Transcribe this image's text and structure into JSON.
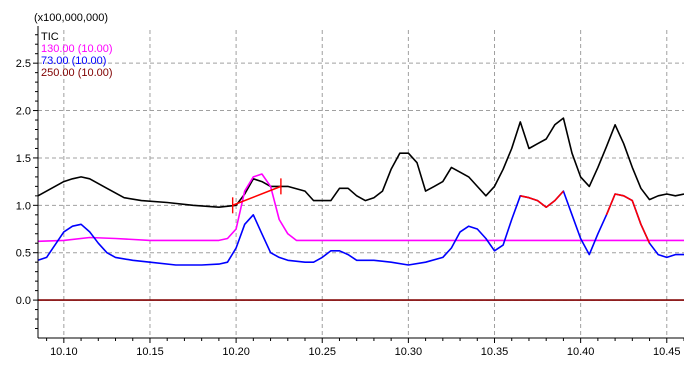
{
  "chart_data": {
    "type": "line",
    "scale_label": "(x100,000,000)",
    "xlim": [
      10.085,
      10.46
    ],
    "ylim": [
      -0.4,
      2.85
    ],
    "x_ticks": [
      10.1,
      10.15,
      10.2,
      10.25,
      10.3,
      10.35,
      10.4,
      10.45
    ],
    "x_tick_labels": [
      "10.10",
      "10.15",
      "10.20",
      "10.25",
      "10.30",
      "10.35",
      "10.40",
      "10.45"
    ],
    "y_ticks": [
      0.0,
      0.5,
      1.0,
      1.5,
      2.0,
      2.5
    ],
    "y_tick_labels": [
      "0.0",
      "0.5",
      "1.0",
      "1.5",
      "2.0",
      "2.5"
    ],
    "grid": true,
    "legend_placement": "top-left",
    "series": [
      {
        "name": "TIC",
        "color": "#000000",
        "x": [
          10.085,
          10.09,
          10.1,
          10.105,
          10.11,
          10.115,
          10.125,
          10.135,
          10.145,
          10.16,
          10.175,
          10.19,
          10.2,
          10.205,
          10.21,
          10.215,
          10.22,
          10.23,
          10.24,
          10.245,
          10.25,
          10.255,
          10.26,
          10.265,
          10.27,
          10.275,
          10.28,
          10.285,
          10.29,
          10.295,
          10.3,
          10.305,
          10.31,
          10.315,
          10.32,
          10.325,
          10.33,
          10.335,
          10.34,
          10.345,
          10.35,
          10.355,
          10.36,
          10.365,
          10.37,
          10.375,
          10.38,
          10.385,
          10.39,
          10.395,
          10.4,
          10.405,
          10.41,
          10.415,
          10.42,
          10.425,
          10.43,
          10.435,
          10.44,
          10.445,
          10.45,
          10.455,
          10.46
        ],
        "y": [
          1.1,
          1.15,
          1.25,
          1.28,
          1.3,
          1.28,
          1.18,
          1.08,
          1.05,
          1.03,
          1.0,
          0.98,
          1.0,
          1.12,
          1.28,
          1.25,
          1.2,
          1.2,
          1.15,
          1.05,
          1.05,
          1.05,
          1.18,
          1.18,
          1.1,
          1.05,
          1.08,
          1.15,
          1.38,
          1.55,
          1.55,
          1.45,
          1.15,
          1.2,
          1.25,
          1.4,
          1.35,
          1.3,
          1.2,
          1.1,
          1.2,
          1.38,
          1.6,
          1.88,
          1.6,
          1.65,
          1.7,
          1.85,
          1.92,
          1.55,
          1.3,
          1.2,
          1.4,
          1.62,
          1.85,
          1.65,
          1.4,
          1.18,
          1.06,
          1.1,
          1.12,
          1.1,
          1.12
        ]
      },
      {
        "name": "130.00 (10.00)",
        "color": "#ff00ff",
        "x": [
          10.085,
          10.1,
          10.115,
          10.13,
          10.15,
          10.17,
          10.19,
          10.195,
          10.2,
          10.205,
          10.21,
          10.215,
          10.22,
          10.225,
          10.23,
          10.235,
          10.25,
          10.3,
          10.35,
          10.4,
          10.46
        ],
        "y": [
          0.62,
          0.63,
          0.66,
          0.65,
          0.63,
          0.63,
          0.63,
          0.65,
          0.75,
          1.15,
          1.3,
          1.33,
          1.2,
          0.85,
          0.7,
          0.63,
          0.63,
          0.63,
          0.63,
          0.63,
          0.63
        ]
      },
      {
        "name": "73.00 (10.00)",
        "color": "#0000ff",
        "x": [
          10.085,
          10.09,
          10.1,
          10.105,
          10.11,
          10.115,
          10.12,
          10.125,
          10.13,
          10.14,
          10.15,
          10.165,
          10.18,
          10.19,
          10.195,
          10.2,
          10.205,
          10.21,
          10.215,
          10.22,
          10.225,
          10.23,
          10.24,
          10.245,
          10.25,
          10.255,
          10.26,
          10.265,
          10.27,
          10.28,
          10.29,
          10.3,
          10.31,
          10.32,
          10.325,
          10.33,
          10.335,
          10.34,
          10.345,
          10.35,
          10.355,
          10.36,
          10.365,
          10.37,
          10.375,
          10.38,
          10.385,
          10.39,
          10.395,
          10.4,
          10.405,
          10.41,
          10.415,
          10.42,
          10.425,
          10.43,
          10.435,
          10.44,
          10.445,
          10.45,
          10.455,
          10.46
        ],
        "y": [
          0.42,
          0.45,
          0.72,
          0.78,
          0.8,
          0.72,
          0.6,
          0.5,
          0.45,
          0.42,
          0.4,
          0.37,
          0.37,
          0.38,
          0.4,
          0.55,
          0.8,
          0.9,
          0.7,
          0.5,
          0.45,
          0.42,
          0.4,
          0.4,
          0.45,
          0.52,
          0.52,
          0.48,
          0.42,
          0.42,
          0.4,
          0.37,
          0.4,
          0.45,
          0.55,
          0.72,
          0.78,
          0.75,
          0.65,
          0.52,
          0.58,
          0.85,
          1.1,
          1.08,
          1.05,
          0.98,
          1.05,
          1.15,
          0.9,
          0.65,
          0.48,
          0.7,
          0.9,
          1.12,
          1.1,
          1.05,
          0.8,
          0.6,
          0.48,
          0.45,
          0.48,
          0.48
        ]
      },
      {
        "name": "250.00 (10.00)",
        "color": "#800000",
        "x": [
          10.085,
          10.46
        ],
        "y": [
          0.0,
          0.0
        ]
      }
    ],
    "annotations": [
      {
        "type": "peak-marker",
        "color": "#ff0000",
        "x": [
          10.198,
          10.226
        ],
        "y": [
          1.0,
          1.2
        ]
      },
      {
        "type": "overlap-highlight",
        "color": "#ff0000",
        "x": [
          10.365,
          10.37,
          10.375,
          10.38,
          10.385,
          10.39
        ],
        "y": [
          1.1,
          1.08,
          1.05,
          0.98,
          1.05,
          1.15
        ]
      },
      {
        "type": "overlap-highlight",
        "color": "#ff0000",
        "x": [
          10.415,
          10.42,
          10.425,
          10.43,
          10.435,
          10.44
        ],
        "y": [
          0.9,
          1.12,
          1.1,
          1.05,
          0.8,
          0.6
        ]
      }
    ]
  }
}
